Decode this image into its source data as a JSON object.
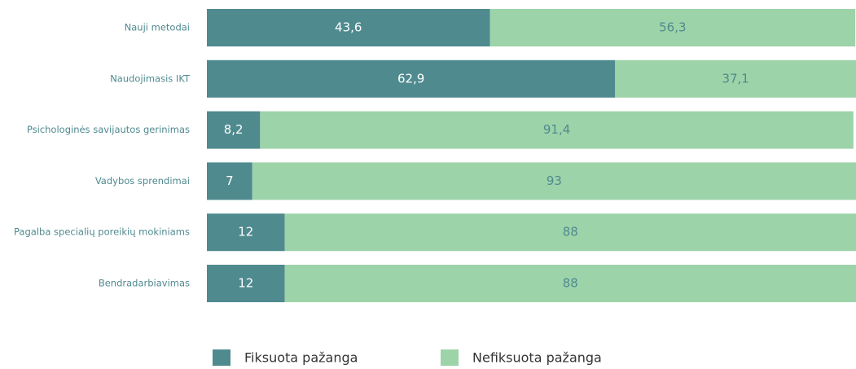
{
  "chart_data": {
    "type": "stacked-barh",
    "categories": [
      "Nauji metodai",
      "Naudojimasis IKT",
      "Psichologinės savijautos gerinimas",
      "Vadybos sprendimai",
      "Pagalba specialių poreikių mokiniams",
      "Bendradarbiavimas"
    ],
    "series": [
      {
        "name": "Fiksuota pažanga",
        "color": "#4f8a8f",
        "values": [
          43.6,
          62.9,
          8.2,
          7,
          12,
          12
        ],
        "value_labels": [
          "43,6",
          "62,9",
          "8,2",
          "7",
          "12",
          "12"
        ]
      },
      {
        "name": "Nefiksuota pažanga",
        "color": "#9dd3a9",
        "values": [
          56.3,
          37.1,
          91.4,
          93,
          88,
          88
        ],
        "value_labels": [
          "56,3",
          "37,1",
          "91,4",
          "93",
          "88",
          "88"
        ]
      }
    ],
    "xlim": [
      0,
      100
    ],
    "legend": "bottom"
  }
}
